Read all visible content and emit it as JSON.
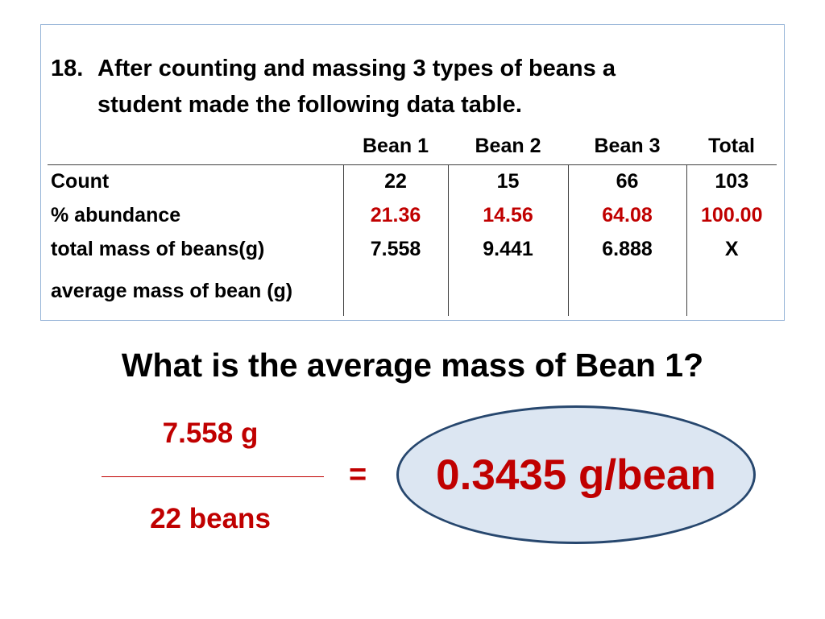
{
  "slide": {
    "heading": {
      "number": "18.",
      "line1": "After counting and massing 3 types of beans a",
      "line2": "student made the following data table."
    },
    "table": {
      "columns": [
        "",
        "Bean 1",
        "Bean 2",
        "Bean 3",
        "Total"
      ],
      "rows": [
        {
          "label": "Count",
          "values": [
            "22",
            "15",
            "66",
            "103"
          ]
        },
        {
          "label": "% abundance",
          "values": [
            "21.36",
            "14.56",
            "64.08",
            "100.00"
          ]
        },
        {
          "label": "total mass of beans(g)",
          "values": [
            "7.558",
            "9.441",
            "6.888",
            "X"
          ]
        },
        {
          "label": "average mass of bean (g)",
          "values": [
            "",
            "",
            "",
            ""
          ]
        }
      ]
    },
    "question": "What is the average mass of Bean 1?",
    "solution": {
      "numerator": "7.558 g",
      "denominator": "22 beans",
      "equals": "=",
      "answer": "0.3435 g/bean"
    }
  },
  "colors": {
    "accent_red": "#c00000",
    "box_border": "#95b3d7",
    "table_line": "#404040",
    "ellipse_fill": "#dce6f2",
    "ellipse_border": "#27476e",
    "text": "#000000"
  }
}
